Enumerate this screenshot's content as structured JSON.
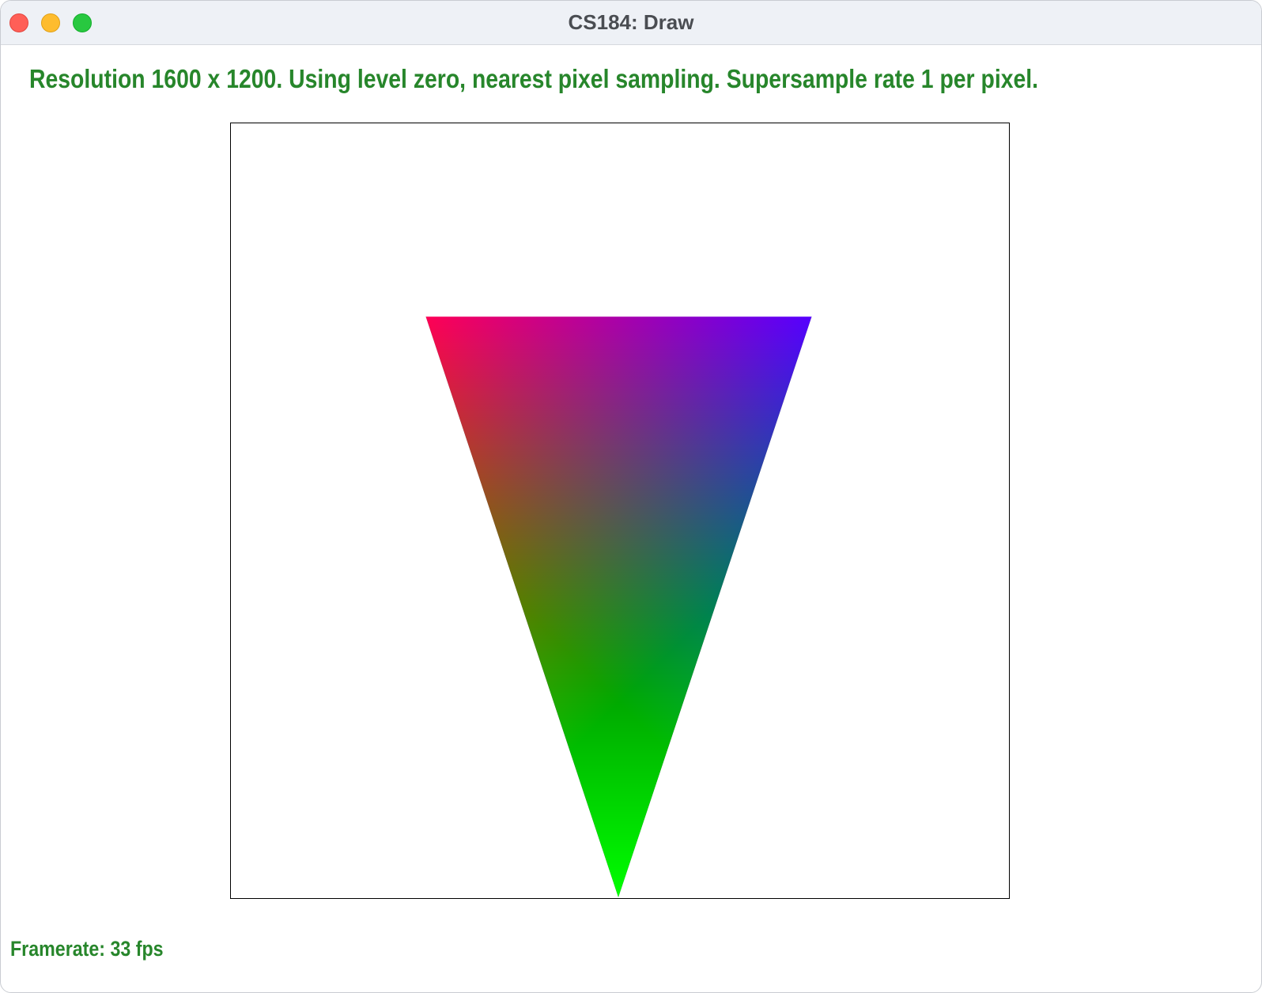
{
  "window": {
    "title": "CS184: Draw"
  },
  "status": {
    "text": "Resolution 1600 x 1200. Using level zero, nearest pixel sampling. Supersample rate 1 per pixel."
  },
  "footer": {
    "framerate": "Framerate: 33 fps"
  },
  "triangle": {
    "vertex_colors": [
      "#ff0000",
      "#0000ff",
      "#00ff00"
    ]
  },
  "colors": {
    "status_text": "#27862b",
    "close": "#ff5f57",
    "minimize": "#febc2e",
    "zoom": "#28c840"
  }
}
